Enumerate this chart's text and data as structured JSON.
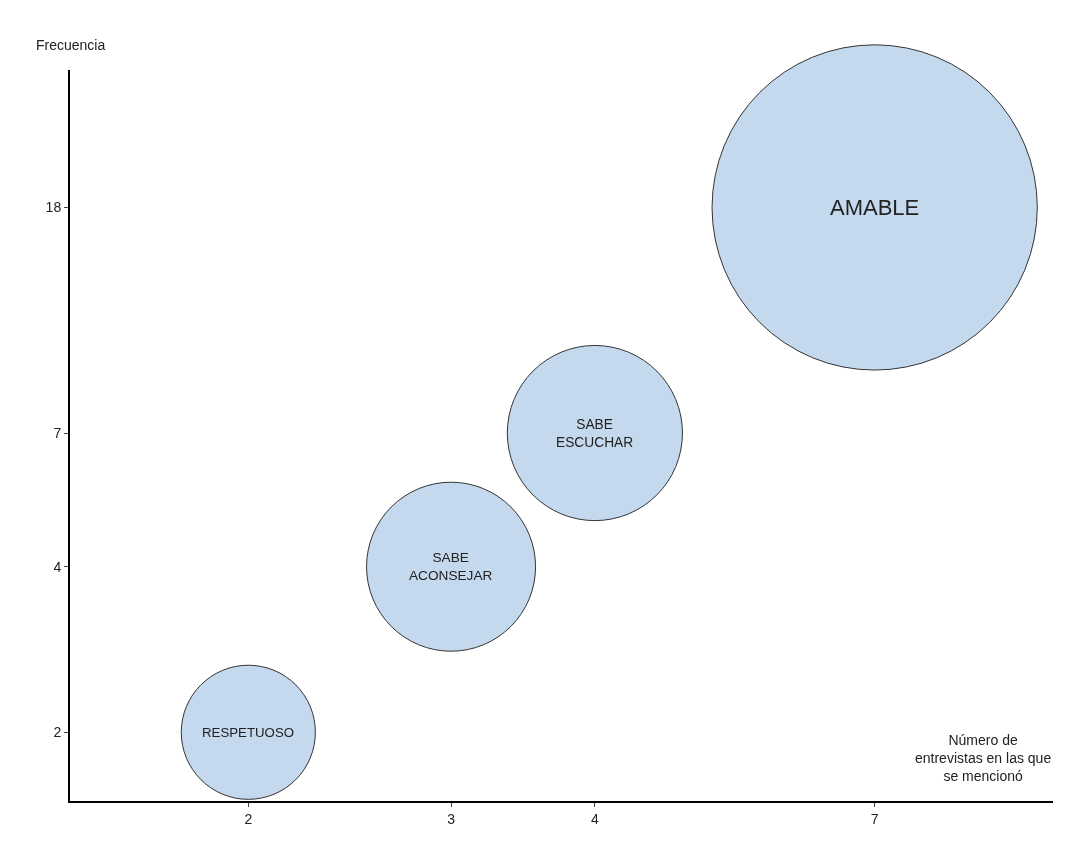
{
  "chart_data": {
    "type": "bubble",
    "xlabel": "Número de entrevistas en las que se mencionó",
    "ylabel": "Frecuencia",
    "x": [
      2,
      3,
      4,
      7
    ],
    "values": [
      2,
      4,
      7,
      18
    ],
    "sizes": [
      0.17,
      0.27,
      0.29,
      1
    ],
    "color": "#c5d9ee",
    "log": "xy",
    "xlim": [
      1.4,
      10
    ],
    "ylim": [
      1.5,
      32
    ],
    "xticks": [
      2,
      3,
      4,
      7
    ],
    "yticks": [
      2,
      4,
      7,
      18
    ],
    "legend": false,
    "annotations": [
      {
        "text": "RESPETUOSO",
        "x": 2,
        "y": 2
      },
      {
        "text": "SABE\nACONSEJAR",
        "x": 3,
        "y": 4
      },
      {
        "text": "SABE\nESCUCHAR",
        "x": 4,
        "y": 7
      },
      {
        "text": "AMABLE",
        "x": 7,
        "y": 18
      }
    ]
  }
}
